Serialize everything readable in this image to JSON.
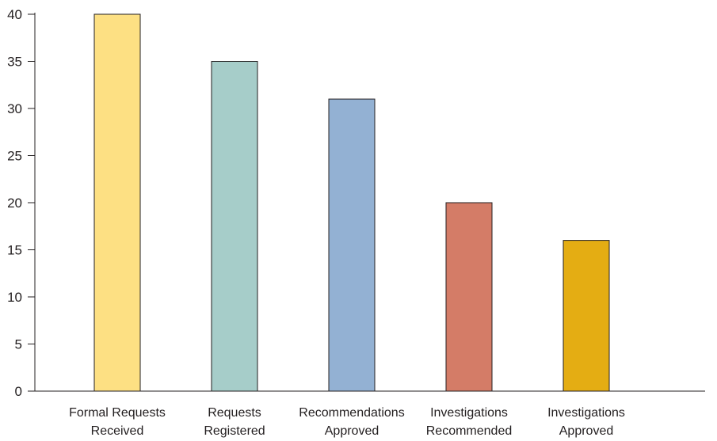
{
  "chart_data": {
    "type": "bar",
    "categories": [
      [
        "Formal Requests",
        "Received"
      ],
      [
        "Requests",
        "Registered"
      ],
      [
        "Recommendations",
        "Approved"
      ],
      [
        "Investigations",
        "Recommended"
      ],
      [
        "Investigations",
        "Approved"
      ]
    ],
    "values": [
      40,
      35,
      31,
      20,
      16
    ],
    "colors": [
      "#fde083",
      "#a6cdc9",
      "#93b1d3",
      "#d47c67",
      "#e4ad13"
    ],
    "ylim": [
      0,
      40
    ],
    "yticks": [
      0,
      5,
      10,
      15,
      20,
      25,
      30,
      35,
      40
    ],
    "title": "",
    "xlabel": "",
    "ylabel": "",
    "grid": false,
    "legend": "none"
  }
}
